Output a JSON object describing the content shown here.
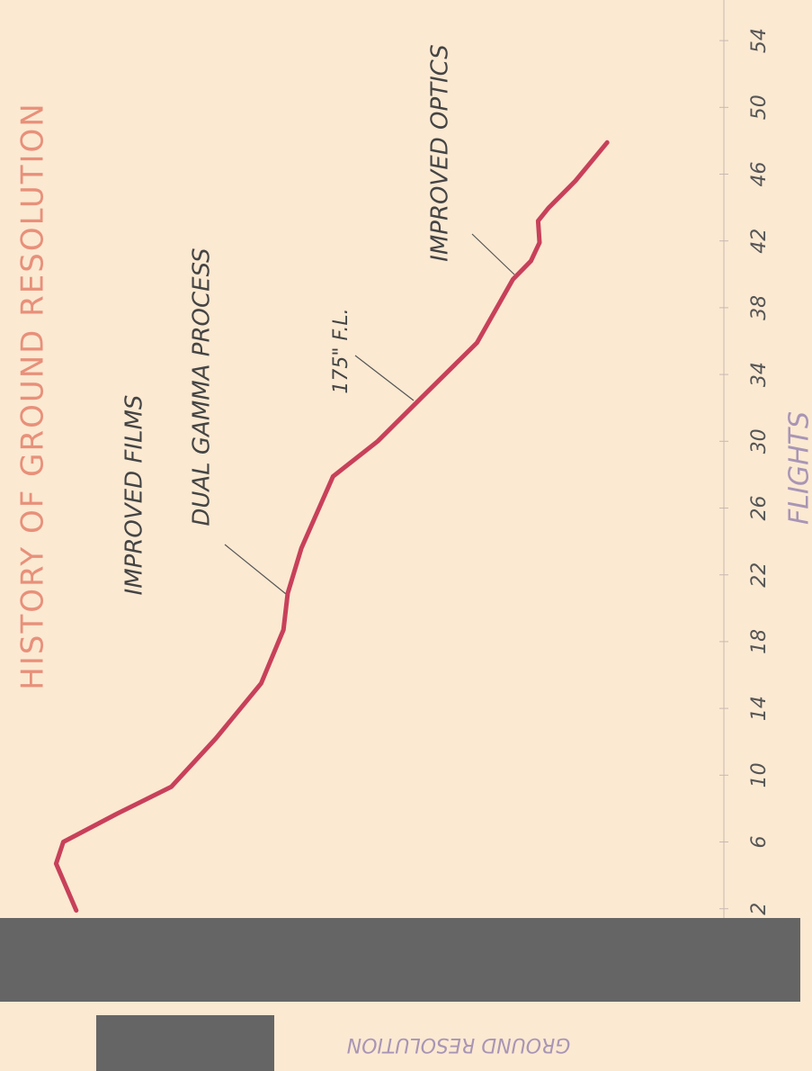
{
  "chart_data": {
    "type": "line",
    "title": "HISTORY OF GROUND RESOLUTION",
    "x_label": "FLIGHTS",
    "y_label": "GROUND RESOLUTION",
    "annotations": [
      "IMPROVED FILMS",
      "DUAL GAMMA PROCESS",
      "175\" F.L.",
      "IMPROVED OPTICS"
    ],
    "x": [
      1.9,
      4.7,
      6.0,
      7.7,
      9.3,
      12.2,
      15.5,
      18.7,
      20.9,
      23.6,
      27.9,
      30.0,
      32.7,
      35.9,
      39.7,
      40.8,
      41.9,
      43.2,
      44.0,
      45.6,
      47.9
    ],
    "series": [
      {
        "name": "GROUND RESOLUTION",
        "color": "#c8405a",
        "values": [
          1.06,
          0.78,
          0.88,
          1.63,
          2.38,
          3.0,
          3.63,
          3.94,
          4.0,
          4.19,
          4.63,
          5.25,
          5.88,
          6.63,
          7.13,
          7.38,
          7.5,
          7.48,
          7.63,
          8.0,
          8.44
        ]
      }
    ],
    "xlim": [
      1.5,
      56
    ],
    "xticks": [
      2,
      6,
      10,
      14,
      18,
      22,
      26,
      30,
      34,
      38,
      42,
      46,
      50,
      54
    ],
    "ylim": [
      0,
      10
    ]
  }
}
